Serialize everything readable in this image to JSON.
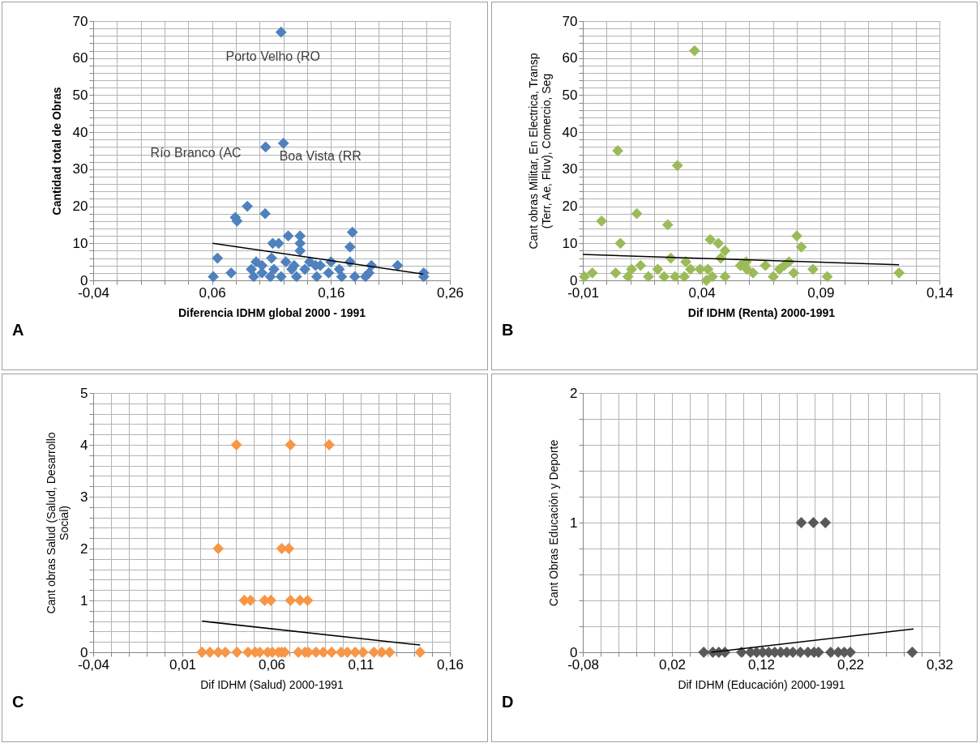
{
  "chart_data": [
    {
      "type": "scatter",
      "grid": true,
      "xlabel": "Diferencia IDHM global 2000 - 1991",
      "ylabel": "Cantidad total de Obras",
      "annotations": [
        "A",
        {
          "text": "Porto Velho (RO",
          "x": 0.118,
          "y": 67
        },
        {
          "text": "Río Branco (AC",
          "x": 0.105,
          "y": 36
        },
        {
          "text": "Boa Vista (RR",
          "x": 0.12,
          "y": 37
        }
      ],
      "xlim": [
        -0.04,
        0.26
      ],
      "ylim": [
        0,
        70
      ],
      "xticks": [
        {
          "value": -0.04,
          "label": "-0,04"
        },
        {
          "value": -0.02,
          "label": null
        },
        {
          "value": 0,
          "label": null
        },
        {
          "value": 0.02,
          "label": null
        },
        {
          "value": 0.04,
          "label": null
        },
        {
          "value": 0.06,
          "label": "0,06"
        },
        {
          "value": 0.08,
          "label": null
        },
        {
          "value": 0.1,
          "label": null
        },
        {
          "value": 0.12,
          "label": null
        },
        {
          "value": 0.14,
          "label": null
        },
        {
          "value": 0.16,
          "label": "0,16"
        },
        {
          "value": 0.18,
          "label": null
        },
        {
          "value": 0.2,
          "label": null
        },
        {
          "value": 0.22,
          "label": null
        },
        {
          "value": 0.24,
          "label": null
        },
        {
          "value": 0.26,
          "label": "0,26"
        }
      ],
      "yticks": [
        0,
        {
          "value": 2,
          "label": null
        },
        {
          "value": 4,
          "label": null
        },
        {
          "value": 6,
          "label": null
        },
        {
          "value": 8,
          "label": null
        },
        10,
        {
          "value": 12,
          "label": null
        },
        {
          "value": 14,
          "label": null
        },
        {
          "value": 16,
          "label": null
        },
        {
          "value": 18,
          "label": null
        },
        20,
        {
          "value": 22,
          "label": null
        },
        {
          "value": 24,
          "label": null
        },
        {
          "value": 26,
          "label": null
        },
        {
          "value": 28,
          "label": null
        },
        30,
        {
          "value": 32,
          "label": null
        },
        {
          "value": 34,
          "label": null
        },
        {
          "value": 36,
          "label": null
        },
        {
          "value": 38,
          "label": null
        },
        40,
        {
          "value": 42,
          "label": null
        },
        {
          "value": 44,
          "label": null
        },
        {
          "value": 46,
          "label": null
        },
        {
          "value": 48,
          "label": null
        },
        50,
        {
          "value": 52,
          "label": null
        },
        {
          "value": 54,
          "label": null
        },
        {
          "value": 56,
          "label": null
        },
        {
          "value": 58,
          "label": null
        },
        60,
        {
          "value": 62,
          "label": null
        },
        {
          "value": 64,
          "label": null
        },
        {
          "value": 66,
          "label": null
        },
        {
          "value": 68,
          "label": null
        },
        70
      ],
      "series": [
        {
          "color": "#4f81bd",
          "marker": "diamond",
          "x": [
            0.118,
            0.105,
            0.12,
            0.0896,
            0.0795,
            0.081,
            0.1046,
            0.0645,
            0.061,
            0.076,
            0.178,
            0.176,
            0.176,
            0.124,
            0.134,
            0.134,
            0.134,
            0.111,
            0.116,
            0.11,
            0.216,
            0.238,
            0.238,
            0.194,
            0.093,
            0.097,
            0.095,
            0.102,
            0.109,
            0.115,
            0.118,
            0.122,
            0.127,
            0.131,
            0.138,
            0.142,
            0.148,
            0.151,
            0.158,
            0.16,
            0.167,
            0.169,
            0.18,
            0.189,
            0.192,
            0.102,
            0.112,
            0.129,
            0.147
          ],
          "values": [
            67,
            36,
            37,
            20,
            17,
            16,
            18,
            6,
            1,
            2,
            13,
            9,
            5,
            12,
            12,
            10,
            8,
            10,
            10,
            6,
            4,
            2,
            1,
            4,
            3,
            5,
            1,
            2,
            1,
            null,
            1,
            5,
            3,
            1,
            3,
            5,
            1,
            4,
            2,
            5,
            3,
            1,
            1,
            1,
            2,
            4,
            3,
            4,
            4
          ]
        },
        {
          "type": "line",
          "color": "#000000",
          "marker": "none",
          "x": [
            0.0604,
            0.2376
          ],
          "values": [
            10,
            1.7
          ]
        }
      ]
    },
    {
      "type": "scatter",
      "grid": true,
      "xlabel": "Dif IDHM (Renta) 2000-1991",
      "ylabel": "Cant obras Militar, En Electrica, Transp (Terr, Ae, Fluv), Comercio, Seg",
      "annotations": [
        "B"
      ],
      "xlim": [
        -0.01,
        0.14
      ],
      "ylim": [
        0,
        70
      ],
      "xticks": [
        {
          "value": -0.01,
          "label": "-0,01"
        },
        {
          "value": 0,
          "label": null
        },
        {
          "value": 0.01,
          "label": null
        },
        {
          "value": 0.02,
          "label": null
        },
        {
          "value": 0.03,
          "label": null
        },
        {
          "value": 0.04,
          "label": "0,04"
        },
        {
          "value": 0.05,
          "label": null
        },
        {
          "value": 0.06,
          "label": null
        },
        {
          "value": 0.07,
          "label": null
        },
        {
          "value": 0.08,
          "label": null
        },
        {
          "value": 0.09,
          "label": "0,09"
        },
        {
          "value": 0.1,
          "label": null
        },
        {
          "value": 0.11,
          "label": null
        },
        {
          "value": 0.12,
          "label": null
        },
        {
          "value": 0.13,
          "label": null
        },
        {
          "value": 0.14,
          "label": "0,14"
        }
      ],
      "yticks": [
        0,
        {
          "value": 2,
          "label": null
        },
        {
          "value": 4,
          "label": null
        },
        {
          "value": 6,
          "label": null
        },
        {
          "value": 8,
          "label": null
        },
        10,
        {
          "value": 12,
          "label": null
        },
        {
          "value": 14,
          "label": null
        },
        {
          "value": 16,
          "label": null
        },
        {
          "value": 18,
          "label": null
        },
        20,
        {
          "value": 22,
          "label": null
        },
        {
          "value": 24,
          "label": null
        },
        {
          "value": 26,
          "label": null
        },
        {
          "value": 28,
          "label": null
        },
        30,
        {
          "value": 32,
          "label": null
        },
        {
          "value": 34,
          "label": null
        },
        {
          "value": 36,
          "label": null
        },
        {
          "value": 38,
          "label": null
        },
        40,
        {
          "value": 42,
          "label": null
        },
        {
          "value": 44,
          "label": null
        },
        {
          "value": 46,
          "label": null
        },
        {
          "value": 48,
          "label": null
        },
        50,
        {
          "value": 52,
          "label": null
        },
        {
          "value": 54,
          "label": null
        },
        {
          "value": 56,
          "label": null
        },
        {
          "value": 58,
          "label": null
        },
        60,
        {
          "value": 62,
          "label": null
        },
        {
          "value": 64,
          "label": null
        },
        {
          "value": 66,
          "label": null
        },
        {
          "value": 68,
          "label": null
        },
        70
      ],
      "series": [
        {
          "color": "#9bbb59",
          "marker": "diamond",
          "x": [
            0.037,
            0.0047,
            0.0298,
            -0.0021,
            0.0127,
            0.0257,
            0.0058,
            0.0436,
            0.047,
            0.0498,
            0.048,
            0.027,
            0.0333,
            0.08,
            0.0819,
            0.0767,
            0.0787,
            0.0868,
            0.0928,
            0.123,
            -0.0093,
            -0.006,
            0.0038,
            0.009,
            0.0105,
            0.0143,
            0.0176,
            0.0215,
            0.0242,
            0.0288,
            0.0327,
            0.0353,
            0.0393,
            0.042,
            0.0426,
            0.0445,
            0.0498,
            0.0563,
            0.0587,
            0.059,
            0.0616,
            0.0668,
            0.0701,
            0.0727,
            0.0747
          ],
          "values": [
            62,
            35,
            31,
            16,
            18,
            15,
            10,
            11,
            10,
            8,
            6,
            6,
            5,
            12,
            9,
            5,
            2,
            3,
            1,
            2,
            1,
            2,
            2,
            1,
            3,
            4,
            1,
            3,
            1,
            1,
            1,
            3,
            3,
            0,
            3,
            1,
            1,
            4,
            5,
            3,
            2,
            4,
            1,
            3,
            4
          ]
        },
        {
          "type": "line",
          "color": "#000000",
          "marker": "none",
          "x": [
            -0.01,
            0.123
          ],
          "values": [
            7,
            4.2
          ]
        }
      ]
    },
    {
      "type": "scatter",
      "grid": true,
      "xlabel": "Dif IDHM (Salud) 2000-1991",
      "ylabel": "Cant obras Salud (Salud, Desarrollo Social)",
      "annotations": [
        "C"
      ],
      "xlim": [
        -0.04,
        0.16
      ],
      "ylim": [
        0,
        5
      ],
      "xticks": [
        {
          "value": -0.04,
          "label": "-0,04"
        },
        {
          "value": -0.03,
          "label": null
        },
        {
          "value": -0.02,
          "label": null
        },
        {
          "value": -0.01,
          "label": null
        },
        {
          "value": 0,
          "label": null
        },
        {
          "value": 0.01,
          "label": "0,01"
        },
        {
          "value": 0.02,
          "label": null
        },
        {
          "value": 0.03,
          "label": null
        },
        {
          "value": 0.04,
          "label": null
        },
        {
          "value": 0.05,
          "label": null
        },
        {
          "value": 0.06,
          "label": "0,06"
        },
        {
          "value": 0.07,
          "label": null
        },
        {
          "value": 0.08,
          "label": null
        },
        {
          "value": 0.09,
          "label": null
        },
        {
          "value": 0.1,
          "label": null
        },
        {
          "value": 0.11,
          "label": "0,11"
        },
        {
          "value": 0.12,
          "label": null
        },
        {
          "value": 0.13,
          "label": null
        },
        {
          "value": 0.14,
          "label": null
        },
        {
          "value": 0.15,
          "label": null
        },
        {
          "value": 0.16,
          "label": "0,16"
        }
      ],
      "yticks": [
        0,
        {
          "value": 0.2,
          "label": null
        },
        {
          "value": 0.4,
          "label": null
        },
        {
          "value": 0.6,
          "label": null
        },
        {
          "value": 0.8,
          "label": null
        },
        1,
        {
          "value": 1.2,
          "label": null
        },
        {
          "value": 1.4,
          "label": null
        },
        {
          "value": 1.6,
          "label": null
        },
        {
          "value": 1.8,
          "label": null
        },
        2,
        {
          "value": 2.2,
          "label": null
        },
        {
          "value": 2.4,
          "label": null
        },
        {
          "value": 2.6,
          "label": null
        },
        {
          "value": 2.8,
          "label": null
        },
        3,
        {
          "value": 3.2,
          "label": null
        },
        {
          "value": 3.4,
          "label": null
        },
        {
          "value": 3.6,
          "label": null
        },
        {
          "value": 3.8,
          "label": null
        },
        4,
        {
          "value": 4.2,
          "label": null
        },
        {
          "value": 4.4,
          "label": null
        },
        {
          "value": 4.6,
          "label": null
        },
        {
          "value": 4.8,
          "label": null
        },
        5
      ],
      "series": [
        {
          "color": "#f79646",
          "marker": "diamond",
          "x": [
            0.0403,
            0.0706,
            0.0923,
            0.0301,
            0.0657,
            0.0697,
            0.0447,
            0.0482,
            0.0561,
            0.0596,
            0.0706,
            0.0759,
            0.0802,
            0.021,
            0.0254,
            0.0301,
            0.0341,
            0.0406,
            0.0468,
            0.0508,
            0.0534,
            0.0578,
            0.0604,
            0.0639,
            0.0657,
            0.0674,
            0.075,
            0.0788,
            0.0806,
            0.0849,
            0.089,
            0.0937,
            0.099,
            0.1025,
            0.1069,
            0.1113,
            0.1174,
            0.1218,
            0.1262,
            0.1433
          ],
          "values": [
            4,
            4,
            4,
            2,
            2,
            2,
            1,
            1,
            1,
            1,
            1,
            1,
            1,
            0,
            0,
            0,
            0,
            0,
            0,
            0,
            0,
            0,
            0,
            0,
            0,
            0,
            0,
            0,
            0,
            0,
            0,
            0,
            0,
            0,
            0,
            0,
            0,
            0,
            0,
            0
          ]
        },
        {
          "type": "line",
          "color": "#000000",
          "marker": "none",
          "x": [
            0.021,
            0.1433
          ],
          "values": [
            0.6,
            0.14
          ]
        }
      ]
    },
    {
      "type": "scatter",
      "grid": true,
      "xlabel": "Dif IDHM (Educación) 2000-1991",
      "ylabel": "Cant Obras Educación y Deporte",
      "annotations": [
        "D"
      ],
      "xlim": [
        -0.08,
        0.32
      ],
      "ylim": [
        0,
        2
      ],
      "xticks": [
        {
          "value": -0.08,
          "label": "-0,08"
        },
        {
          "value": -0.06,
          "label": null
        },
        {
          "value": -0.04,
          "label": null
        },
        {
          "value": -0.02,
          "label": null
        },
        {
          "value": 0,
          "label": null
        },
        {
          "value": 0.02,
          "label": "0,02"
        },
        {
          "value": 0.04,
          "label": null
        },
        {
          "value": 0.06,
          "label": null
        },
        {
          "value": 0.08,
          "label": null
        },
        {
          "value": 0.1,
          "label": null
        },
        {
          "value": 0.12,
          "label": "0,12"
        },
        {
          "value": 0.14,
          "label": null
        },
        {
          "value": 0.16,
          "label": null
        },
        {
          "value": 0.18,
          "label": null
        },
        {
          "value": 0.2,
          "label": null
        },
        {
          "value": 0.22,
          "label": "0,22"
        },
        {
          "value": 0.24,
          "label": null
        },
        {
          "value": 0.26,
          "label": null
        },
        {
          "value": 0.28,
          "label": null
        },
        {
          "value": 0.3,
          "label": null
        },
        {
          "value": 0.32,
          "label": "0,32"
        }
      ],
      "yticks": [
        0,
        {
          "value": 0.2,
          "label": null
        },
        {
          "value": 0.4,
          "label": null
        },
        {
          "value": 0.6,
          "label": null
        },
        {
          "value": 0.8,
          "label": null
        },
        1,
        {
          "value": 1.2,
          "label": null
        },
        {
          "value": 1.4,
          "label": null
        },
        {
          "value": 1.6,
          "label": null
        },
        {
          "value": 1.8,
          "label": null
        },
        2
      ],
      "series": [
        {
          "color": "#595959",
          "marker": "diamond",
          "x": [
            0.165,
            0.1786,
            0.192,
            0.0556,
            0.0658,
            0.0725,
            0.0793,
            0.098,
            0.1081,
            0.1149,
            0.1217,
            0.1285,
            0.1353,
            0.142,
            0.1488,
            0.1556,
            0.164,
            0.1725,
            0.1793,
            0.1844,
            0.198,
            0.2064,
            0.2132,
            0.22,
            0.2895
          ],
          "values": [
            1,
            1,
            1,
            0,
            0,
            0,
            0,
            0,
            0,
            0,
            0,
            0,
            0,
            0,
            0,
            0,
            0,
            0,
            0,
            0,
            0,
            0,
            0,
            0,
            0
          ]
        },
        {
          "type": "line",
          "color": "#000000",
          "marker": "none",
          "x": [
            0.064,
            0.291
          ],
          "values": [
            0,
            0.18
          ]
        }
      ]
    }
  ]
}
